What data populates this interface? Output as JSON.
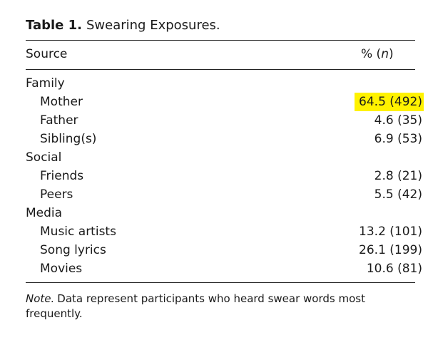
{
  "table": {
    "caption_label": "Table 1.",
    "caption_title": "Swearing Exposures.",
    "header_source": "Source",
    "header_percent_prefix": "% (",
    "header_percent_n": "n",
    "header_percent_suffix": ")",
    "groups": [
      {
        "name": "Family",
        "rows": [
          {
            "label": "Mother",
            "value": "64.5 (492)",
            "highlighted": true
          },
          {
            "label": "Father",
            "value": "4.6 (35)"
          },
          {
            "label": "Sibling(s)",
            "value": "6.9 (53)"
          }
        ]
      },
      {
        "name": "Social",
        "rows": [
          {
            "label": "Friends",
            "value": "2.8 (21)"
          },
          {
            "label": "Peers",
            "value": "5.5 (42)"
          }
        ]
      },
      {
        "name": "Media",
        "rows": [
          {
            "label": "Music artists",
            "value": "13.2 (101)"
          },
          {
            "label": "Song lyrics",
            "value": "26.1 (199)"
          },
          {
            "label": "Movies",
            "value": "10.6 (81)"
          }
        ]
      }
    ],
    "note_label": "Note.",
    "note_text": "Data represent participants who heard swear words most frequently.",
    "highlight_color": "#fff200"
  }
}
